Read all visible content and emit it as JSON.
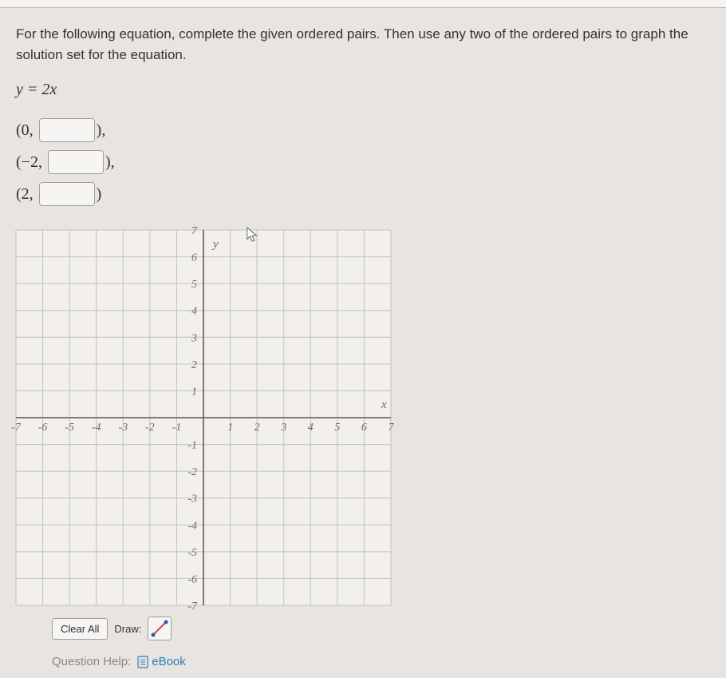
{
  "instructions": "For the following equation, complete the given ordered pairs. Then use any two of the ordered pairs to graph the solution set for the equation.",
  "equation": "y = 2x",
  "pairs": [
    {
      "x": "0",
      "suffix": "),"
    },
    {
      "x": "−2",
      "suffix": "),"
    },
    {
      "x": "2",
      "suffix": ")"
    }
  ],
  "graph": {
    "xmin": -7,
    "xmax": 7,
    "ymin": -7,
    "ymax": 7,
    "xtick_step": 1,
    "ytick_step": 1,
    "size": 470,
    "grid_color": "#b8c4c8",
    "axis_color": "#555",
    "tick_color": "#555",
    "label_color": "#6a6a6a",
    "bg_color": "#f2efec",
    "x_label": "x",
    "y_label": "y",
    "label_font": "italic 15px Times New Roman",
    "tick_font": "italic 14px Times New Roman"
  },
  "toolbar": {
    "clear_label": "Clear All",
    "draw_label": "Draw:"
  },
  "help": {
    "label": "Question Help:",
    "ebook": "eBook"
  }
}
